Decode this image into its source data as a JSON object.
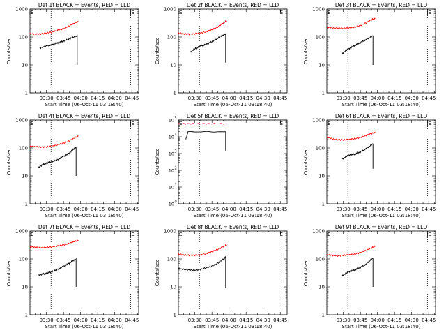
{
  "figure": {
    "title_template": "Det {det} BLACK = Events, RED = LLD",
    "xlabel_template": "Start Time ({start})",
    "ylabel": "Counts/sec"
  },
  "colors": {
    "events": "#000000",
    "lld": "#ff0000",
    "axes": "#000000",
    "background": "#ffffff"
  },
  "panel_defaults": {
    "x_ticks": [
      "03:30",
      "03:45",
      "04:00",
      "04:15",
      "04:30",
      "04:45"
    ],
    "x_tick_minutes": [
      30,
      45,
      60,
      75,
      90,
      105
    ],
    "x_minor_step_minutes": 5,
    "xlim_minutes": [
      15.5,
      111
    ],
    "dotted_lines_minutes": [
      34,
      104
    ],
    "corner_marks": [
      "E",
      "E"
    ],
    "corner_mark_minutes": [
      15.5,
      104
    ],
    "y_scale": "log"
  },
  "chart_data": [
    {
      "type": "line",
      "det": "1f",
      "title": "Det 1f BLACK = Events, RED = LLD",
      "start": "06-Oct-11 03:18:40",
      "xlabel": "Start Time (06-Oct-11 03:18:40)",
      "ylabel": "Counts/sec",
      "ylim": [
        1,
        1000
      ],
      "y_tick_style": "plain",
      "y_ticks": [
        "1",
        "10",
        "100",
        "1000"
      ],
      "series": [
        {
          "name": "Events",
          "color": "#000000",
          "x": [
            24,
            27,
            30,
            33,
            36,
            39,
            42,
            45,
            48,
            51,
            54,
            57
          ],
          "y": [
            40,
            44,
            48,
            50,
            55,
            60,
            65,
            72,
            80,
            90,
            98,
            110
          ],
          "drop_to": 10
        },
        {
          "name": "LLD",
          "color": "#ff0000",
          "x": [
            15.5,
            20,
            25,
            30,
            35,
            40,
            45,
            50,
            55,
            58
          ],
          "y": [
            130,
            125,
            130,
            140,
            150,
            175,
            200,
            250,
            320,
            370
          ]
        }
      ]
    },
    {
      "type": "line",
      "det": "2f",
      "title": "Det 2f BLACK = Events, RED = LLD",
      "start": "06-Oct-11 03:18:40",
      "xlabel": "Start Time (06-Oct-11 03:18:40)",
      "ylabel": "Counts/sec",
      "ylim": [
        1,
        1000
      ],
      "y_tick_style": "plain",
      "y_ticks": [
        "1",
        "10",
        "100",
        "1000"
      ],
      "series": [
        {
          "name": "Events",
          "color": "#000000",
          "x": [
            26,
            29,
            32,
            35,
            38,
            41,
            44,
            47,
            50,
            53,
            57
          ],
          "y": [
            28,
            36,
            42,
            48,
            52,
            58,
            65,
            75,
            90,
            110,
            130
          ],
          "drop_to": 12
        },
        {
          "name": "LLD",
          "color": "#ff0000",
          "x": [
            15.5,
            20,
            25,
            30,
            35,
            40,
            45,
            50,
            55,
            58
          ],
          "y": [
            140,
            130,
            125,
            130,
            140,
            155,
            180,
            230,
            320,
            380
          ]
        }
      ]
    },
    {
      "type": "line",
      "det": "3f",
      "title": "Det 3f BLACK = Events, RED = LLD",
      "start": "06-Oct-11 03:18:40",
      "xlabel": "Start Time (06-Oct-11 03:18:40)",
      "ylabel": "Counts/sec",
      "ylim": [
        1,
        1000
      ],
      "y_tick_style": "plain",
      "y_ticks": [
        "1",
        "10",
        "100",
        "1000"
      ],
      "series": [
        {
          "name": "Events",
          "color": "#000000",
          "x": [
            29,
            32,
            35,
            38,
            41,
            44,
            47,
            50,
            53,
            56
          ],
          "y": [
            25,
            32,
            38,
            45,
            52,
            60,
            70,
            80,
            95,
            110
          ],
          "drop_to": 10
        },
        {
          "name": "LLD",
          "color": "#ff0000",
          "x": [
            15.5,
            20,
            25,
            30,
            35,
            40,
            45,
            50,
            55,
            58
          ],
          "y": [
            220,
            215,
            210,
            205,
            210,
            225,
            260,
            320,
            420,
            480
          ]
        }
      ]
    },
    {
      "type": "line",
      "det": "4f",
      "title": "Det 4f BLACK = Events, RED = LLD",
      "start": "06-Oct-11 03:18:40",
      "xlabel": "Start Time (06-Oct-11 03:18:40)",
      "ylabel": "Counts/sec",
      "ylim": [
        1,
        1000
      ],
      "y_tick_style": "plain",
      "y_ticks": [
        "1",
        "10",
        "100",
        "1000"
      ],
      "series": [
        {
          "name": "Events",
          "color": "#000000",
          "x": [
            23,
            26,
            29,
            32,
            35,
            38,
            41,
            44,
            47,
            50,
            53,
            56
          ],
          "y": [
            20,
            24,
            28,
            30,
            32,
            36,
            40,
            48,
            55,
            65,
            85,
            110
          ],
          "drop_to": 10
        },
        {
          "name": "LLD",
          "color": "#ff0000",
          "x": [
            15.5,
            20,
            25,
            30,
            35,
            40,
            45,
            50,
            55,
            58
          ],
          "y": [
            115,
            110,
            108,
            110,
            115,
            130,
            150,
            180,
            230,
            280
          ]
        }
      ]
    },
    {
      "type": "line",
      "det": "5f",
      "title": "Det 5f BLACK = Events, RED = LLD",
      "start": "06-Oct-11 03:18:40",
      "xlabel": "Start Time (06-Oct-11 03:18:40)",
      "ylabel": "Counts/sec",
      "ylim": [
        1,
        100000
      ],
      "y_tick_style": "pow10",
      "y_ticks": [
        "10",
        "10",
        "10",
        "10",
        "10",
        "10"
      ],
      "y_tick_exponents": [
        "0",
        "1",
        "2",
        "3",
        "4",
        "5"
      ],
      "series": [
        {
          "name": "Events",
          "color": "#000000",
          "x": [
            22,
            24,
            57
          ],
          "y": [
            7000,
            20000,
            20000
          ],
          "drop_to": 1500
        },
        {
          "name": "LLD",
          "color": "#ff0000",
          "x": [
            15.5,
            25,
            35,
            45,
            57
          ],
          "y": [
            60000,
            60000,
            60000,
            60000,
            60000
          ]
        }
      ]
    },
    {
      "type": "line",
      "det": "6f",
      "title": "Det 6f BLACK = Events, RED = LLD",
      "start": "06-Oct-11 03:18:40",
      "xlabel": "Start Time (06-Oct-11 03:18:40)",
      "ylabel": "Counts/sec",
      "ylim": [
        1,
        1000
      ],
      "y_tick_style": "plain",
      "y_ticks": [
        "1",
        "10",
        "100",
        "1000"
      ],
      "series": [
        {
          "name": "Events",
          "color": "#000000",
          "x": [
            29,
            32,
            35,
            38,
            41,
            44,
            47,
            50,
            53,
            56
          ],
          "y": [
            40,
            48,
            55,
            58,
            62,
            70,
            80,
            95,
            115,
            140
          ],
          "drop_to": 18
        },
        {
          "name": "LLD",
          "color": "#ff0000",
          "x": [
            15.5,
            20,
            25,
            30,
            35,
            40,
            45,
            50,
            55,
            58
          ],
          "y": [
            240,
            215,
            200,
            195,
            200,
            215,
            240,
            280,
            330,
            370
          ]
        }
      ]
    },
    {
      "type": "line",
      "det": "7f",
      "title": "Det 7f BLACK = Events, RED = LLD",
      "start": "06-Oct-11 03:18:40",
      "xlabel": "Start Time (06-Oct-11 03:18:40)",
      "ylabel": "Counts/sec",
      "ylim": [
        1,
        1000
      ],
      "y_tick_style": "plain",
      "y_ticks": [
        "1",
        "10",
        "100",
        "1000"
      ],
      "series": [
        {
          "name": "Events",
          "color": "#000000",
          "x": [
            23,
            26,
            29,
            32,
            35,
            38,
            41,
            44,
            47,
            50,
            53,
            56
          ],
          "y": [
            26,
            28,
            30,
            32,
            35,
            40,
            45,
            52,
            60,
            70,
            85,
            100
          ],
          "drop_to": 10
        },
        {
          "name": "LLD",
          "color": "#ff0000",
          "x": [
            15.5,
            20,
            25,
            30,
            35,
            40,
            45,
            50,
            55,
            58
          ],
          "y": [
            270,
            260,
            255,
            260,
            270,
            290,
            320,
            360,
            420,
            470
          ]
        }
      ]
    },
    {
      "type": "line",
      "det": "8f",
      "title": "Det 8f BLACK = Events, RED = LLD",
      "start": "06-Oct-11 03:18:40",
      "xlabel": "Start Time (06-Oct-11 03:18:40)",
      "ylabel": "Counts/sec",
      "ylim": [
        1,
        1000
      ],
      "y_tick_style": "plain",
      "y_ticks": [
        "1",
        "10",
        "100",
        "1000"
      ],
      "series": [
        {
          "name": "Events",
          "color": "#000000",
          "x": [
            15.5,
            20,
            25,
            30,
            35,
            40,
            45,
            50,
            55,
            57
          ],
          "y": [
            45,
            42,
            40,
            40,
            42,
            48,
            55,
            70,
            100,
            120
          ],
          "drop_to": 9
        },
        {
          "name": "LLD",
          "color": "#ff0000",
          "x": [
            15.5,
            20,
            25,
            30,
            35,
            40,
            45,
            50,
            55,
            58
          ],
          "y": [
            150,
            140,
            135,
            135,
            140,
            155,
            180,
            220,
            280,
            320
          ]
        }
      ]
    },
    {
      "type": "line",
      "det": "9f",
      "title": "Det 9f BLACK = Events, RED = LLD",
      "start": "06-Oct-11 03:18:40",
      "xlabel": "Start Time (06-Oct-11 03:18:40)",
      "ylabel": "Counts/sec",
      "ylim": [
        1,
        1000
      ],
      "y_tick_style": "plain",
      "y_ticks": [
        "1",
        "10",
        "100",
        "1000"
      ],
      "series": [
        {
          "name": "Events",
          "color": "#000000",
          "x": [
            29,
            32,
            35,
            38,
            41,
            44,
            47,
            50,
            53,
            56
          ],
          "y": [
            25,
            30,
            35,
            38,
            42,
            48,
            55,
            65,
            85,
            105
          ],
          "drop_to": 10
        },
        {
          "name": "LLD",
          "color": "#ff0000",
          "x": [
            15.5,
            20,
            25,
            30,
            35,
            40,
            45,
            50,
            55,
            58
          ],
          "y": [
            140,
            135,
            130,
            135,
            140,
            150,
            170,
            200,
            250,
            300
          ]
        }
      ]
    }
  ]
}
